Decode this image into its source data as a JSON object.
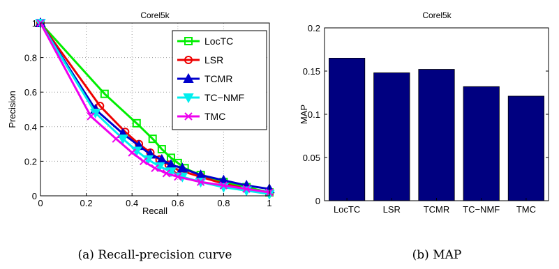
{
  "chart_data": [
    {
      "type": "line",
      "title": "Corel5k",
      "xlabel": "Recall",
      "ylabel": "Precision",
      "xlim": [
        0,
        1
      ],
      "ylim": [
        0,
        1
      ],
      "xticks": [
        "0",
        "0.2",
        "0.4",
        "0.6",
        "0.8",
        "1"
      ],
      "yticks": [
        "0",
        "0.2",
        "0.4",
        "0.6",
        "0.8",
        "1"
      ],
      "grid": true,
      "legend": "top-right",
      "caption": "(a) Recall-precision curve",
      "series": [
        {
          "name": "LocTC",
          "color": "#00ee00",
          "marker": "square",
          "x": [
            0,
            0.28,
            0.42,
            0.49,
            0.53,
            0.57,
            0.6,
            0.63,
            0.7,
            0.8,
            0.9,
            1.0
          ],
          "y": [
            1,
            0.59,
            0.42,
            0.33,
            0.27,
            0.22,
            0.19,
            0.16,
            0.12,
            0.08,
            0.05,
            0.02
          ]
        },
        {
          "name": "LSR",
          "color": "#ee0000",
          "marker": "circle",
          "x": [
            0,
            0.26,
            0.37,
            0.43,
            0.48,
            0.52,
            0.56,
            0.6,
            0.7,
            0.8,
            0.9,
            1.0
          ],
          "y": [
            1,
            0.52,
            0.37,
            0.3,
            0.25,
            0.21,
            0.18,
            0.15,
            0.11,
            0.07,
            0.04,
            0.02
          ]
        },
        {
          "name": "TCMR",
          "color": "#0000cc",
          "marker": "triangle-up",
          "x": [
            0,
            0.24,
            0.36,
            0.43,
            0.48,
            0.53,
            0.57,
            0.62,
            0.7,
            0.8,
            0.9,
            1.0
          ],
          "y": [
            1,
            0.5,
            0.36,
            0.29,
            0.24,
            0.21,
            0.18,
            0.16,
            0.12,
            0.09,
            0.06,
            0.04
          ]
        },
        {
          "name": "TC−NMF",
          "color": "#00eeee",
          "marker": "triangle-down",
          "x": [
            0,
            0.24,
            0.36,
            0.42,
            0.47,
            0.52,
            0.57,
            0.62,
            0.7,
            0.8,
            0.9,
            1.0
          ],
          "y": [
            1,
            0.48,
            0.33,
            0.26,
            0.21,
            0.17,
            0.14,
            0.11,
            0.08,
            0.05,
            0.03,
            0.01
          ]
        },
        {
          "name": "TMC",
          "color": "#ee00ee",
          "marker": "x",
          "x": [
            0,
            0.22,
            0.33,
            0.4,
            0.45,
            0.5,
            0.55,
            0.6,
            0.7,
            0.8,
            0.9,
            1.0
          ],
          "y": [
            1,
            0.46,
            0.33,
            0.25,
            0.2,
            0.16,
            0.13,
            0.11,
            0.08,
            0.06,
            0.04,
            0.02
          ]
        }
      ]
    },
    {
      "type": "bar",
      "title": "Corel5k",
      "xlabel": "",
      "ylabel": "MAP",
      "ylim": [
        0,
        0.2
      ],
      "yticks": [
        "0",
        "0.05",
        "0.1",
        "0.15",
        "0.2"
      ],
      "categories": [
        "LocTC",
        "LSR",
        "TCMR",
        "TC−NMF",
        "TMC"
      ],
      "values": [
        0.165,
        0.148,
        0.152,
        0.132,
        0.121
      ],
      "bar_color": "#000080",
      "grid": false,
      "caption": "(b) MAP"
    }
  ]
}
